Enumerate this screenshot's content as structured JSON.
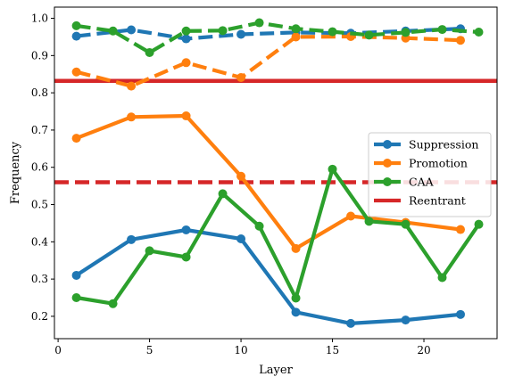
{
  "chart_data": {
    "type": "line",
    "xlabel": "Layer",
    "ylabel": "Frequency",
    "xlim": [
      -0.2,
      24
    ],
    "ylim": [
      0.14,
      1.03
    ],
    "xticks": [
      0,
      5,
      10,
      15,
      20
    ],
    "yticks": [
      0.2,
      0.3,
      0.4,
      0.5,
      0.6,
      0.7,
      0.8,
      0.9,
      1.0
    ],
    "xtick_labels": [
      "0",
      "5",
      "10",
      "15",
      "20"
    ],
    "ytick_labels": [
      "0.2",
      "0.3",
      "0.4",
      "0.5",
      "0.6",
      "0.7",
      "0.8",
      "0.9",
      "1.0"
    ],
    "grid": false,
    "legend_position": "center-right",
    "colors": {
      "blue": "#1f77b4",
      "orange": "#ff7f0e",
      "green": "#2ca02c",
      "red": "#d62728"
    },
    "series": [
      {
        "name": "",
        "color": "#1f77b4",
        "style": "dashed",
        "marker": true,
        "x": [
          1,
          4,
          7,
          10,
          13,
          16,
          19,
          22
        ],
        "y": [
          0.952,
          0.969,
          0.945,
          0.957,
          0.962,
          0.96,
          0.966,
          0.972
        ]
      },
      {
        "name": "",
        "color": "#ff7f0e",
        "style": "dashed",
        "marker": true,
        "x": [
          1,
          4,
          7,
          10,
          13,
          16,
          19,
          22
        ],
        "y": [
          0.856,
          0.818,
          0.881,
          0.841,
          0.95,
          0.951,
          0.947,
          0.941
        ]
      },
      {
        "name": "",
        "color": "#2ca02c",
        "style": "dashed",
        "marker": true,
        "x": [
          1,
          3,
          5,
          7,
          9,
          11,
          13,
          15,
          17,
          19,
          21,
          23
        ],
        "y": [
          0.98,
          0.966,
          0.908,
          0.966,
          0.967,
          0.988,
          0.972,
          0.964,
          0.955,
          0.962,
          0.97,
          0.963
        ]
      },
      {
        "name": "Suppression",
        "color": "#1f77b4",
        "style": "solid",
        "marker": true,
        "x": [
          1,
          4,
          7,
          10,
          13,
          16,
          19,
          22
        ],
        "y": [
          0.31,
          0.406,
          0.432,
          0.408,
          0.211,
          0.181,
          0.19,
          0.205
        ]
      },
      {
        "name": "Promotion",
        "color": "#ff7f0e",
        "style": "solid",
        "marker": true,
        "x": [
          1,
          4,
          7,
          10,
          13,
          16,
          19,
          22
        ],
        "y": [
          0.678,
          0.735,
          0.738,
          0.576,
          0.382,
          0.469,
          0.452,
          0.433
        ]
      },
      {
        "name": "CAA",
        "color": "#2ca02c",
        "style": "solid",
        "marker": true,
        "x": [
          1,
          3,
          5,
          7,
          9,
          11,
          13,
          15,
          17,
          19,
          21,
          23
        ],
        "y": [
          0.25,
          0.234,
          0.376,
          0.359,
          0.529,
          0.442,
          0.249,
          0.595,
          0.455,
          0.447,
          0.304,
          0.447
        ]
      }
    ],
    "hlines": [
      {
        "name": "Reentrant",
        "color": "#d62728",
        "style": "solid",
        "y": 0.832
      },
      {
        "name": "",
        "color": "#d62728",
        "style": "dashed",
        "y": 0.56
      }
    ],
    "legend": [
      {
        "label": "Suppression",
        "color": "#1f77b4",
        "marker": true
      },
      {
        "label": "Promotion",
        "color": "#ff7f0e",
        "marker": true
      },
      {
        "label": "CAA",
        "color": "#2ca02c",
        "marker": true
      },
      {
        "label": "Reentrant",
        "color": "#d62728",
        "marker": false
      }
    ]
  }
}
